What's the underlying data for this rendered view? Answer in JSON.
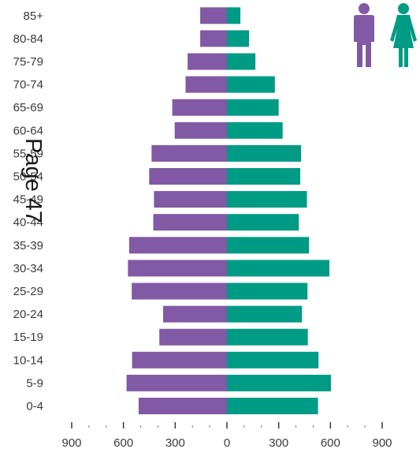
{
  "chart_data": {
    "type": "bar",
    "orientation": "horizontal",
    "layout": "population-pyramid",
    "categories": [
      "0-4",
      "5-9",
      "10-14",
      "15-19",
      "20-24",
      "25-29",
      "30-34",
      "35-39",
      "40-44",
      "45-49",
      "50-54",
      "55-59",
      "60-64",
      "65-69",
      "70-74",
      "75-79",
      "80-84",
      "85+"
    ],
    "series": [
      {
        "name": "",
        "side": "left",
        "color": "#8159a5",
        "values": [
          512,
          582,
          550,
          392,
          370,
          552,
          574,
          567,
          427,
          423,
          451,
          437,
          303,
          317,
          240,
          228,
          155,
          155
        ]
      },
      {
        "name": "",
        "side": "right",
        "color": "#009b84",
        "values": [
          528,
          603,
          531,
          469,
          435,
          467,
          594,
          476,
          417,
          464,
          425,
          430,
          323,
          300,
          278,
          165,
          128,
          78
        ]
      }
    ],
    "xticks": [
      "900",
      "600",
      "300",
      "0",
      "300",
      "600",
      "900"
    ],
    "xlim": [
      -900,
      900
    ],
    "grid": false
  },
  "icons": {
    "male": "male-person-icon",
    "female": "female-person-icon",
    "male_color": "#8159a5",
    "female_color": "#009b84"
  },
  "watermark": {
    "text": "Page 47"
  }
}
